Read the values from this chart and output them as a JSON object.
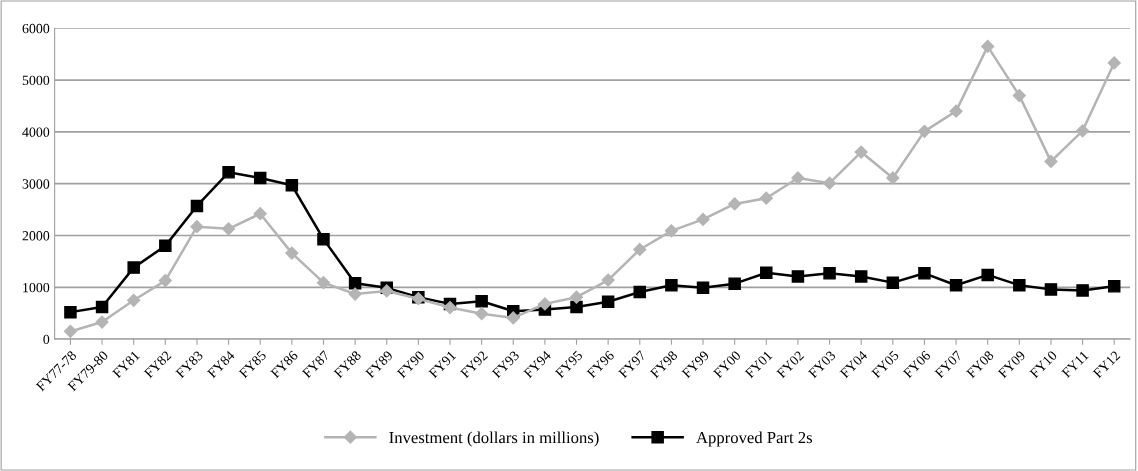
{
  "chart_data": {
    "type": "line",
    "categories": [
      "FY77-78",
      "FY79-80",
      "FY81",
      "FY82",
      "FY83",
      "FY84",
      "FY85",
      "FY86",
      "FY87",
      "FY88",
      "FY89",
      "FY90",
      "FY91",
      "FY92",
      "FY93",
      "FY94",
      "FY95",
      "FY96",
      "FY97",
      "FY98",
      "FY99",
      "FY00",
      "FY01",
      "FY02",
      "FY03",
      "FY04",
      "FY05",
      "FY06",
      "FY07",
      "FY08",
      "FY09",
      "FY10",
      "FY11",
      "FY12"
    ],
    "series": [
      {
        "name": "Investment (dollars in millions)",
        "color": "#b4b4b4",
        "marker": "diamond",
        "values": [
          150,
          330,
          750,
          1130,
          2170,
          2130,
          2420,
          1660,
          1090,
          870,
          930,
          780,
          610,
          490,
          410,
          680,
          810,
          1140,
          1730,
          2090,
          2310,
          2610,
          2720,
          3110,
          3010,
          3610,
          3110,
          4010,
          4400,
          5650,
          4700,
          3430,
          4020,
          5330
        ]
      },
      {
        "name": "Approved Part 2s",
        "color": "#000000",
        "marker": "square",
        "values": [
          520,
          620,
          1380,
          1800,
          2570,
          3220,
          3110,
          2970,
          1930,
          1080,
          990,
          810,
          680,
          730,
          540,
          570,
          620,
          720,
          910,
          1040,
          990,
          1070,
          1280,
          1210,
          1270,
          1210,
          1090,
          1270,
          1040,
          1240,
          1040,
          960,
          940,
          1020
        ]
      }
    ],
    "ylim": [
      0,
      6000
    ],
    "yticks": [
      0,
      1000,
      2000,
      3000,
      4000,
      5000,
      6000
    ],
    "grid": "y",
    "legend": "bottom",
    "line_style": "solid"
  }
}
